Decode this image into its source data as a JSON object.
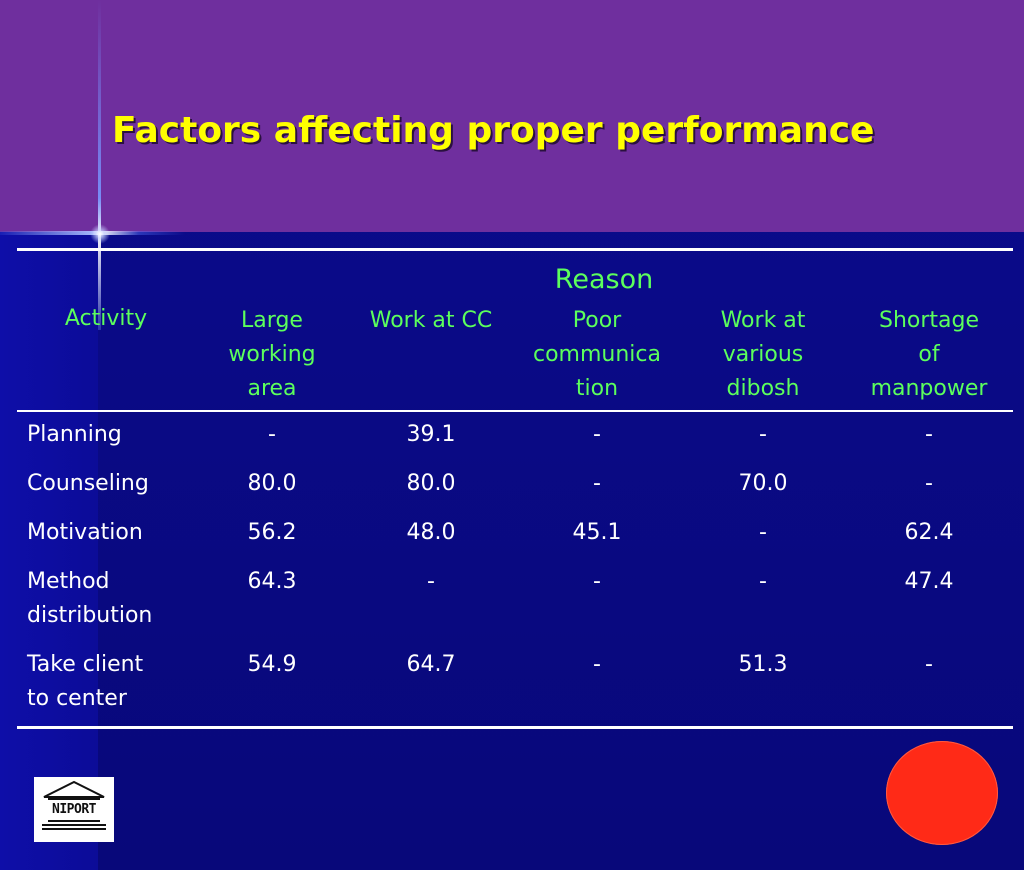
{
  "title": "Factors affecting proper performance",
  "table": {
    "group_header": "Reason",
    "activity_header": "Activity",
    "columns": [
      [
        "Large",
        "working",
        "area"
      ],
      [
        "Work at CC"
      ],
      [
        "Poor",
        "communica",
        "tion"
      ],
      [
        "Work at",
        "various",
        "dibosh"
      ],
      [
        "Shortage",
        "of",
        "manpower"
      ]
    ],
    "rows": [
      {
        "activity": [
          "Planning"
        ],
        "values": [
          "-",
          "39.1",
          "-",
          "-",
          "-"
        ]
      },
      {
        "activity": [
          "Counseling"
        ],
        "values": [
          "80.0",
          "80.0",
          "-",
          "70.0",
          "-"
        ]
      },
      {
        "activity": [
          "Motivation"
        ],
        "values": [
          "56.2",
          "48.0",
          "45.1",
          "-",
          "62.4"
        ]
      },
      {
        "activity": [
          "Method",
          "distribution"
        ],
        "values": [
          "64.3",
          "-",
          "-",
          "-",
          "47.4"
        ]
      },
      {
        "activity": [
          "Take client",
          "to center"
        ],
        "values": [
          "54.9",
          "64.7",
          "-",
          "51.3",
          "-"
        ]
      }
    ]
  },
  "logo": {
    "text": "NIPORT",
    "icon": "institution-building-icon"
  },
  "colors": {
    "header_band": "#6f2f9e",
    "background": "#0a0a8c",
    "title": "#ffff00",
    "header_text": "#5cff5c",
    "body_text": "#ffffff",
    "circle": "#ff2a17"
  }
}
